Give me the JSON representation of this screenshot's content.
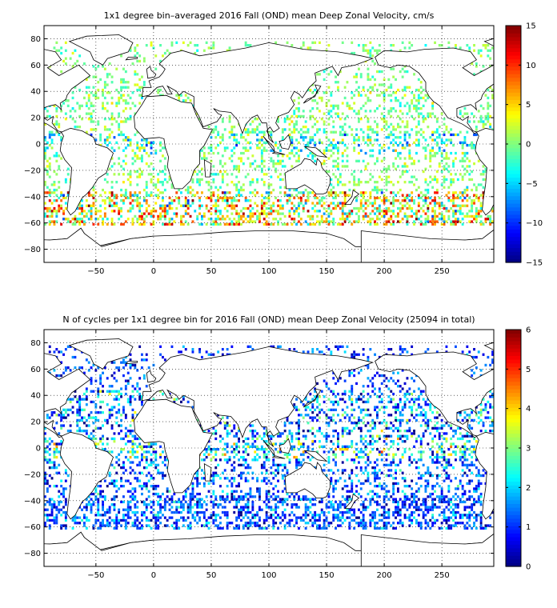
{
  "chart_data": [
    {
      "type": "heatmap",
      "title": "1x1 degree bin–averaged 2016 Fall (OND) mean Deep Zonal Velocity, cm/s",
      "xlabel": "",
      "ylabel": "",
      "xlim": [
        -95,
        295
      ],
      "ylim": [
        -90,
        90
      ],
      "xticks": [
        -50,
        0,
        50,
        100,
        150,
        200,
        250
      ],
      "yticks": [
        -80,
        -60,
        -40,
        -20,
        0,
        20,
        40,
        60,
        80
      ],
      "grid": "dotted",
      "colorbar": {
        "min": -15,
        "max": 15,
        "ticks": [
          -15,
          -10,
          -5,
          0,
          5,
          10,
          15
        ],
        "colormap": "jet"
      },
      "background_map": "world coastlines",
      "bands": [
        {
          "lat_min": -62,
          "lat_max": -36,
          "mean": 3,
          "spread": 11,
          "density": 0.42
        },
        {
          "lat_min": -36,
          "lat_max": -8,
          "mean": 0,
          "spread": 4,
          "density": 0.22
        },
        {
          "lat_min": -8,
          "lat_max": 8,
          "mean": -2,
          "spread": 7,
          "density": 0.32
        },
        {
          "lat_min": 8,
          "lat_max": 44,
          "mean": 0,
          "spread": 4,
          "density": 0.26
        },
        {
          "lat_min": 44,
          "lat_max": 78,
          "mean": 0,
          "spread": 3,
          "density": 0.16
        }
      ]
    },
    {
      "type": "heatmap",
      "title": "N of cycles per 1x1 degree bin for 2016 Fall (OND) mean Deep Zonal Velocity (25094 in total)",
      "xlabel": "",
      "ylabel": "",
      "xlim": [
        -95,
        295
      ],
      "ylim": [
        -90,
        90
      ],
      "xticks": [
        -50,
        0,
        50,
        100,
        150,
        200,
        250
      ],
      "yticks": [
        -80,
        -60,
        -40,
        -20,
        0,
        20,
        40,
        60,
        80
      ],
      "grid": "dotted",
      "total_cycles": 25094,
      "colorbar": {
        "min": 0,
        "max": 6,
        "ticks": [
          0,
          1,
          2,
          3,
          4,
          5,
          6
        ],
        "colormap": "jet"
      },
      "background_map": "world coastlines",
      "bands": [
        {
          "lat_min": -62,
          "lat_max": -36,
          "mean": 1.2,
          "spread": 1.2,
          "density": 0.45
        },
        {
          "lat_min": -36,
          "lat_max": -8,
          "mean": 1.3,
          "spread": 1.4,
          "density": 0.3
        },
        {
          "lat_min": -8,
          "lat_max": 8,
          "mean": 2.0,
          "spread": 2.2,
          "density": 0.35
        },
        {
          "lat_min": 8,
          "lat_max": 44,
          "mean": 1.5,
          "spread": 1.8,
          "density": 0.32
        },
        {
          "lat_min": 44,
          "lat_max": 78,
          "mean": 1.1,
          "spread": 1.0,
          "density": 0.18
        }
      ]
    }
  ]
}
